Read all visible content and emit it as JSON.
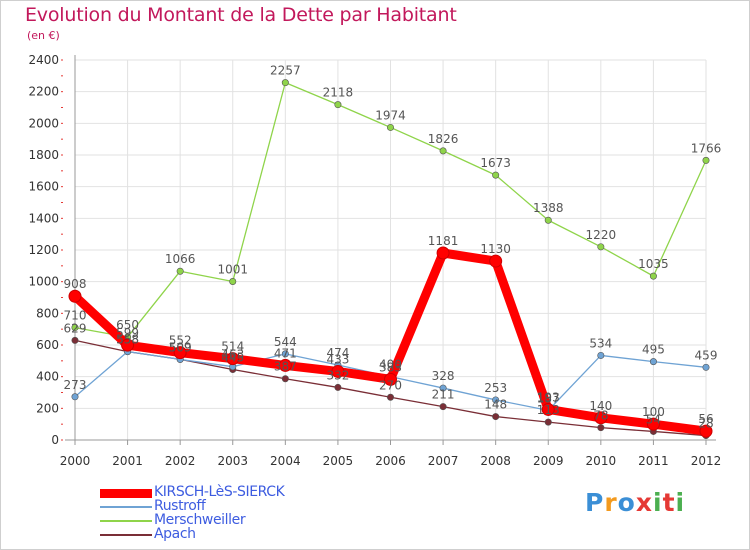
{
  "header": {
    "title": "Evolution du Montant de la Dette par Habitant",
    "subtitle": "(en €)"
  },
  "logo": {
    "text": "Proxiti",
    "letter_colors": [
      "#3b8fd6",
      "#f39a1e",
      "#3b8fd6",
      "#e53935",
      "#4caf50",
      "#e53935",
      "#4caf50"
    ]
  },
  "chart_data": {
    "type": "line",
    "title": "Evolution du Montant de la Dette par Habitant",
    "subtitle": "(en €)",
    "xlabel": "",
    "ylabel": "",
    "categories": [
      "2000",
      "2001",
      "2002",
      "2003",
      "2004",
      "2005",
      "2006",
      "2007",
      "2008",
      "2009",
      "2010",
      "2011",
      "2012"
    ],
    "ylim": [
      0,
      2400
    ],
    "yticks": [
      0,
      200,
      400,
      600,
      800,
      1000,
      1200,
      1400,
      1600,
      1800,
      2000,
      2200,
      2400
    ],
    "grid": true,
    "legend_position": "bottom-left",
    "series": [
      {
        "name": "Apach",
        "color": "#7a2e36",
        "values": [
          629,
          558,
          509,
          445,
          387,
          332,
          270,
          211,
          148,
          113,
          78,
          54,
          28
        ]
      },
      {
        "name": "Merschweiller",
        "color": "#8fd44a",
        "values": [
          710,
          650,
          1066,
          1001,
          2257,
          2118,
          1974,
          1826,
          1673,
          1388,
          1220,
          1035,
          1766
        ]
      },
      {
        "name": "Rustroff",
        "color": "#6fa3d4",
        "values": [
          273,
          558,
          509,
          463,
          544,
          474,
          400,
          328,
          253,
          187,
          534,
          495,
          459
        ]
      },
      {
        "name": "KIRSCH-LèS-SIERCK",
        "color": "#ff0000",
        "values": [
          908,
          599,
          552,
          514,
          471,
          433,
          383,
          1181,
          1130,
          193,
          140,
          100,
          56
        ]
      }
    ]
  }
}
